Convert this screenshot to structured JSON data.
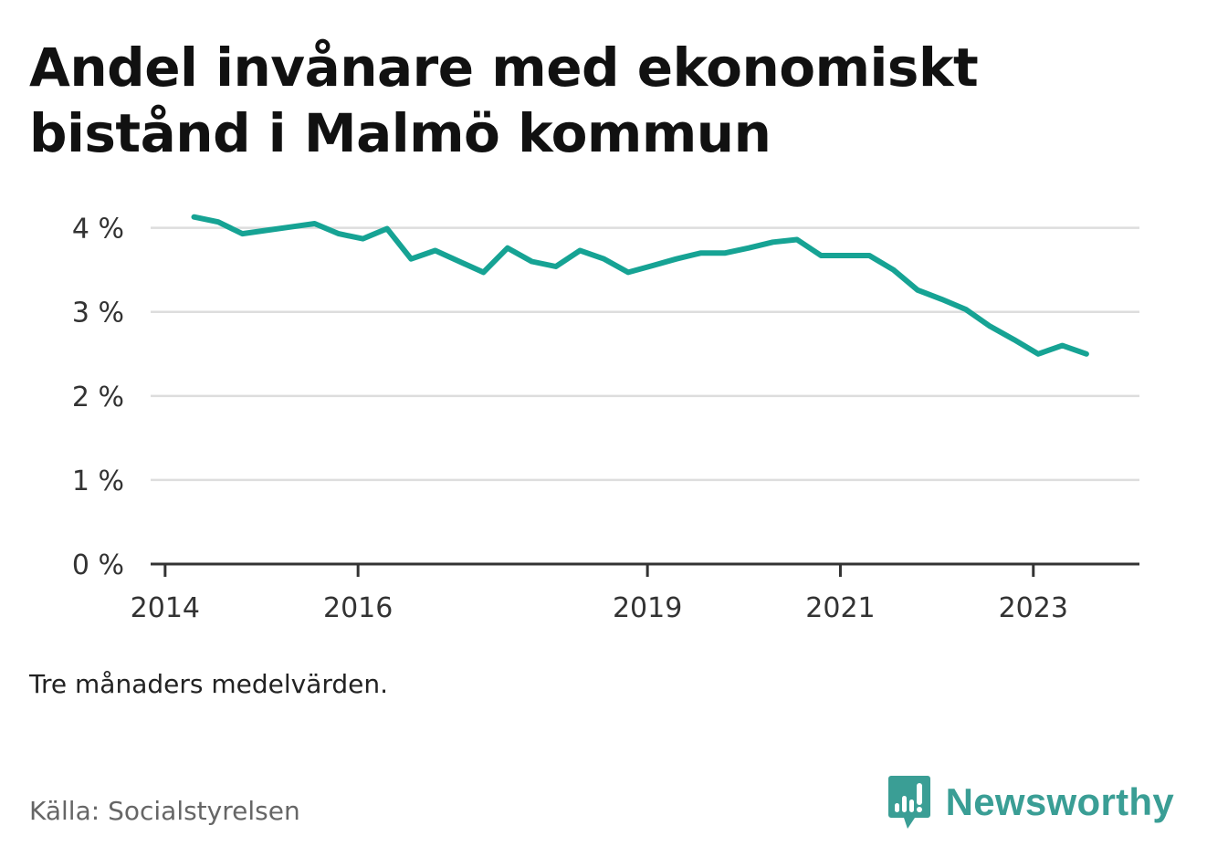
{
  "title": "Andel invånare med ekonomiskt bistånd i Malmö kommun",
  "note": "Tre månaders medelvärden.",
  "source": "Källa: Socialstyrelsen",
  "brand": {
    "name": "Newsworthy",
    "icon": "bar-chart-speech-bubble-icon",
    "color": "#3a9e95"
  },
  "chart_data": {
    "type": "line",
    "title": "Andel invånare med ekonomiskt bistånd i Malmö kommun",
    "xlabel": "",
    "ylabel": "",
    "x_ticks": [
      {
        "label": "2014",
        "value": 2014.0
      },
      {
        "label": "2016",
        "value": 2016.0
      },
      {
        "label": "2019",
        "value": 2019.0
      },
      {
        "label": "2021",
        "value": 2021.0
      },
      {
        "label": "2023",
        "value": 2023.0
      }
    ],
    "y_ticks": [
      {
        "label": "0 %",
        "value": 0
      },
      {
        "label": "1 %",
        "value": 1
      },
      {
        "label": "2 %",
        "value": 2
      },
      {
        "label": "3 %",
        "value": 3
      },
      {
        "label": "4 %",
        "value": 4
      }
    ],
    "xlim": [
      2013.85,
      2024.1
    ],
    "ylim": [
      0,
      4.3
    ],
    "grid": true,
    "color": "#16a394",
    "series": [
      {
        "x": [
          2014.3,
          2014.55,
          2014.8,
          2015.05,
          2015.3,
          2015.55,
          2015.8,
          2016.05,
          2016.3,
          2016.55,
          2016.8,
          2017.05,
          2017.3,
          2017.55,
          2017.8,
          2018.05,
          2018.3,
          2018.55,
          2018.8,
          2019.05,
          2019.3,
          2019.55,
          2019.8,
          2020.05,
          2020.3,
          2020.55,
          2020.8,
          2021.05,
          2021.3,
          2021.55,
          2021.8,
          2022.05,
          2022.3,
          2022.55,
          2022.8,
          2023.05,
          2023.3,
          2023.55
        ],
        "values": [
          4.13,
          4.07,
          3.93,
          3.97,
          4.01,
          4.05,
          3.93,
          3.87,
          3.99,
          3.63,
          3.73,
          3.6,
          3.47,
          3.76,
          3.6,
          3.54,
          3.73,
          3.63,
          3.47,
          3.55,
          3.63,
          3.7,
          3.7,
          3.76,
          3.83,
          3.86,
          3.67,
          3.67,
          3.67,
          3.5,
          3.26,
          3.15,
          3.03,
          2.83,
          2.67,
          2.5,
          2.6,
          2.5
        ]
      }
    ]
  }
}
